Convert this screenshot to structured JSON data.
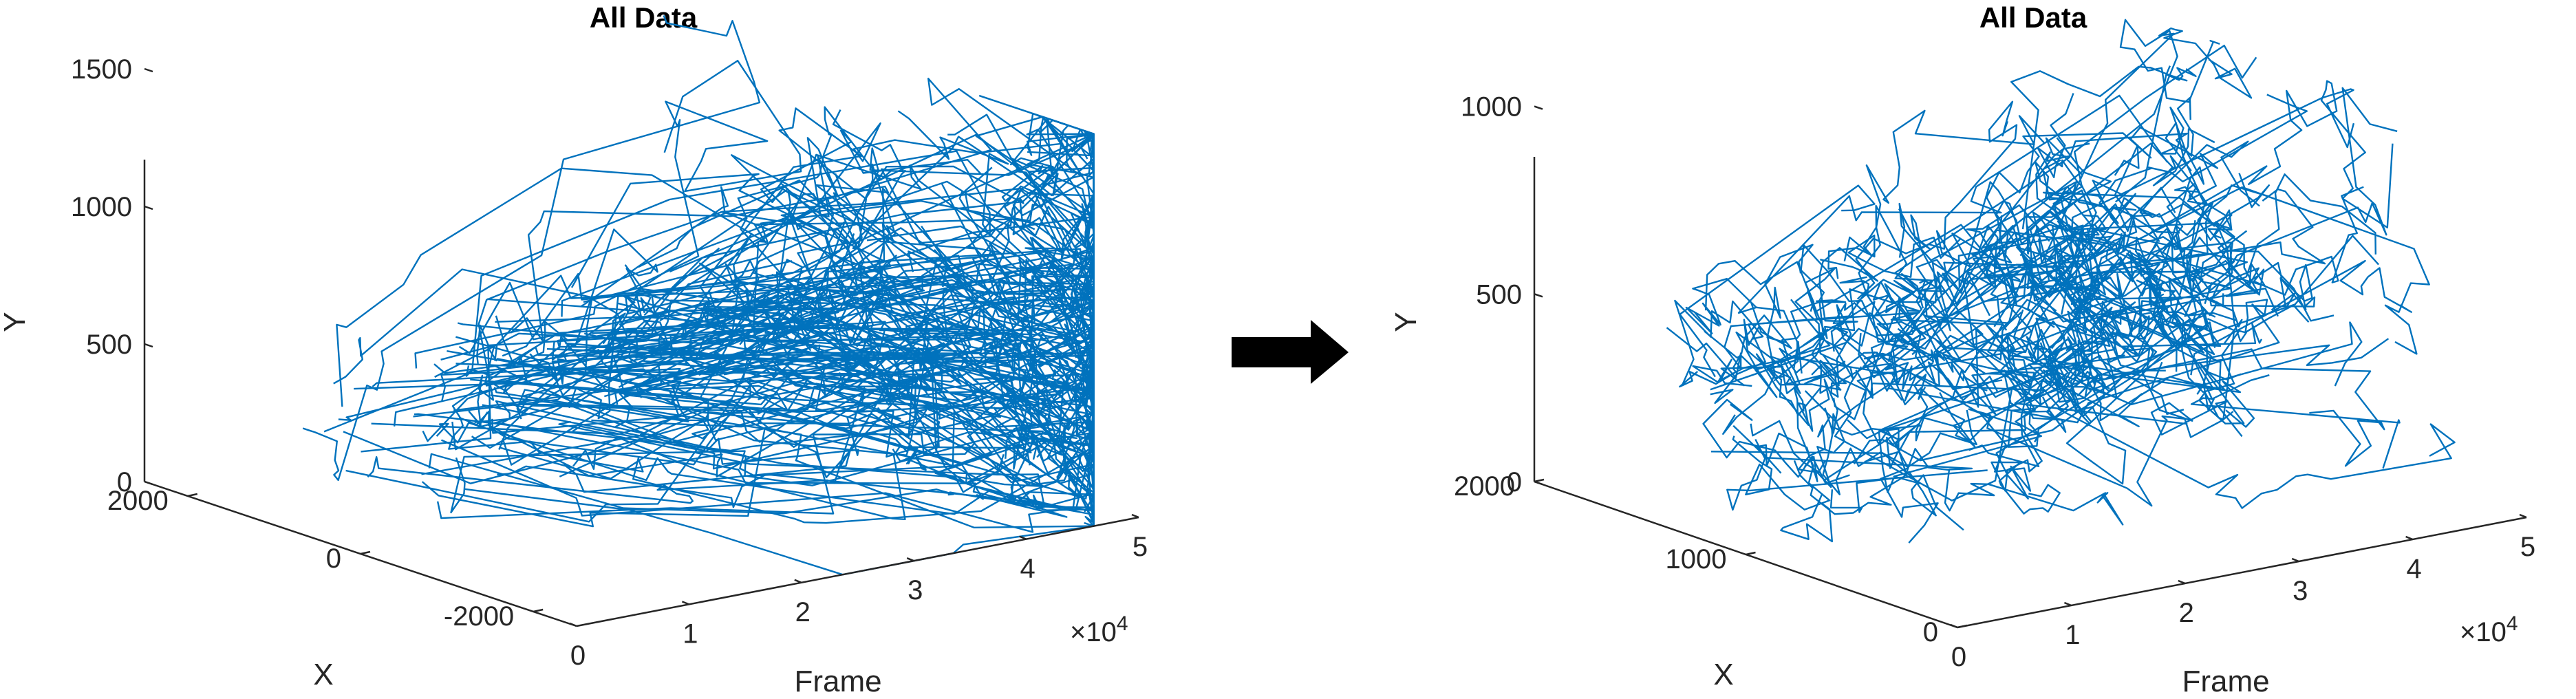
{
  "chart_data": [
    {
      "type": "line3d",
      "title": "All Data",
      "xlabel": "Frame",
      "ylabel": "X",
      "zlabel": "Y",
      "x_multiplier_label": "×10",
      "x_multiplier_exp": "4",
      "xlim": [
        0,
        50000
      ],
      "ylim": [
        -2500,
        2500
      ],
      "zlim": [
        0,
        1500
      ],
      "xticks": [
        0,
        1,
        2,
        3,
        4,
        5
      ],
      "yticks": [
        2000,
        0,
        -2000
      ],
      "zticks": [
        0,
        500,
        1000,
        1500
      ],
      "grid": false,
      "series_color": "#0072BD",
      "seed": 17,
      "jump_fraction": 0.55,
      "clusters": [
        {
          "frame": 6000,
          "x": 400,
          "y": 330
        },
        {
          "frame": 12000,
          "x": 300,
          "y": 420
        },
        {
          "frame": 18000,
          "x": 300,
          "y": 500
        },
        {
          "frame": 23000,
          "x": 200,
          "y": 560
        },
        {
          "frame": 30000,
          "x": 0,
          "y": 640
        }
      ]
    },
    {
      "type": "line3d",
      "title": "All Data",
      "xlabel": "Frame",
      "ylabel": "X",
      "zlabel": "Y",
      "x_multiplier_label": "×10",
      "x_multiplier_exp": "4",
      "xlim": [
        0,
        50000
      ],
      "ylim": [
        0,
        2000
      ],
      "zlim": [
        0,
        1100
      ],
      "xticks": [
        0,
        1,
        2,
        3,
        4,
        5
      ],
      "yticks": [
        2000,
        1000,
        0
      ],
      "zticks": [
        0,
        500,
        1000
      ],
      "grid": false,
      "series_color": "#0072BD",
      "seed": 29,
      "jump_fraction": 0.08,
      "clusters": [
        {
          "frame": 6000,
          "x": 1300,
          "y": 330
        },
        {
          "frame": 12000,
          "x": 1200,
          "y": 360
        },
        {
          "frame": 18000,
          "x": 1150,
          "y": 420
        },
        {
          "frame": 24000,
          "x": 1050,
          "y": 470
        },
        {
          "frame": 30000,
          "x": 950,
          "y": 540
        }
      ]
    }
  ],
  "arrow_color": "#000000"
}
